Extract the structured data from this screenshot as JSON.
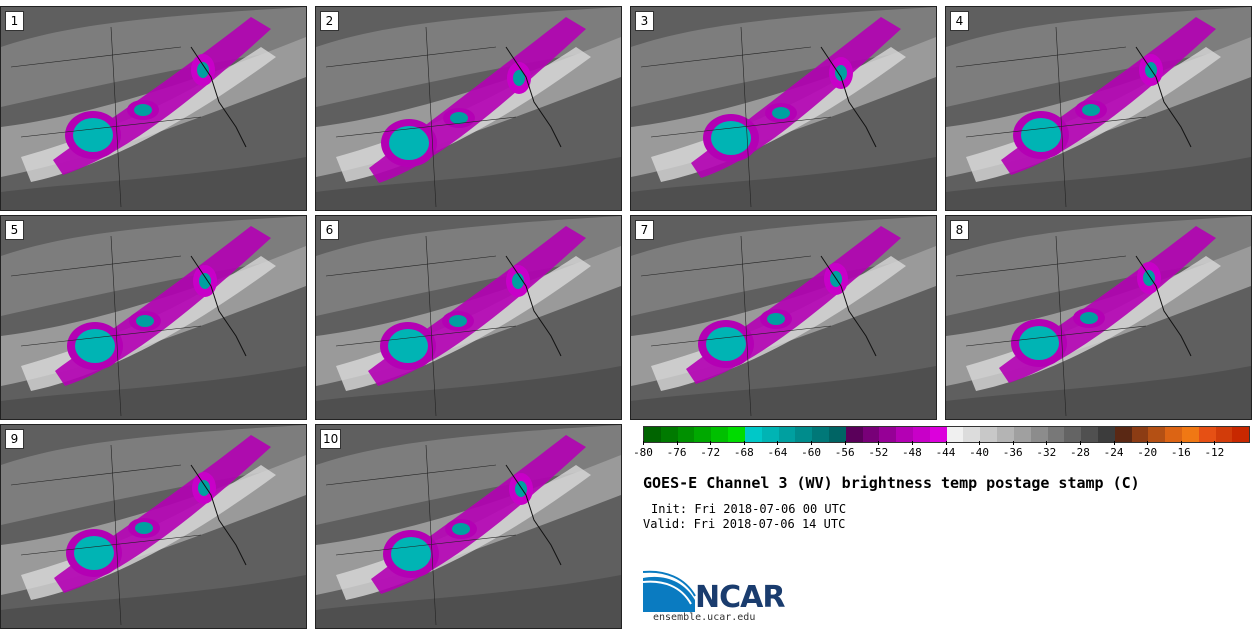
{
  "panels": [
    {
      "label": "1",
      "blob": {
        "cx": 92,
        "cy": 128
      }
    },
    {
      "label": "2",
      "blob": {
        "cx": 93,
        "cy": 136
      }
    },
    {
      "label": "3",
      "blob": {
        "cx": 100,
        "cy": 131
      }
    },
    {
      "label": "4",
      "blob": {
        "cx": 95,
        "cy": 128
      }
    },
    {
      "label": "5",
      "blob": {
        "cx": 94,
        "cy": 130
      }
    },
    {
      "label": "6",
      "blob": {
        "cx": 92,
        "cy": 130
      }
    },
    {
      "label": "7",
      "blob": {
        "cx": 95,
        "cy": 128
      }
    },
    {
      "label": "8",
      "blob": {
        "cx": 93,
        "cy": 127
      }
    },
    {
      "label": "9",
      "blob": {
        "cx": 93,
        "cy": 128
      }
    },
    {
      "label": "10",
      "blob": {
        "cx": 95,
        "cy": 129
      }
    }
  ],
  "colorbar": {
    "colors": [
      "#006400",
      "#007a00",
      "#009000",
      "#00a800",
      "#00c000",
      "#00dc00",
      "#00c8c8",
      "#00b4b4",
      "#00a0a0",
      "#008c8c",
      "#007878",
      "#006464",
      "#5a005a",
      "#780078",
      "#960096",
      "#b400b4",
      "#c800c8",
      "#dc00dc",
      "#f0f0f0",
      "#dcdcdc",
      "#c8c8c8",
      "#b4b4b4",
      "#a0a0a0",
      "#8c8c8c",
      "#787878",
      "#646464",
      "#505050",
      "#3c3c3c",
      "#5a2814",
      "#8c3c14",
      "#b45014",
      "#dc6414",
      "#f07814",
      "#e65014",
      "#d23c0a",
      "#c82800"
    ],
    "ticks": [
      "-80",
      "-76",
      "-72",
      "-68",
      "-64",
      "-60",
      "-56",
      "-52",
      "-48",
      "-44",
      "-40",
      "-36",
      "-32",
      "-28",
      "-24",
      "-20",
      "-16",
      "-12"
    ]
  },
  "title": "GOES-E Channel 3 (WV) brightness temp postage stamp (C)",
  "init": "Init: Fri 2018-07-06 00 UTC",
  "valid": "Valid: Fri 2018-07-06 14 UTC",
  "logo": {
    "text": "NCAR",
    "url": "ensemble.ucar.edu",
    "color": "#1a3c6e",
    "swoosh": "#0a7bc1"
  }
}
